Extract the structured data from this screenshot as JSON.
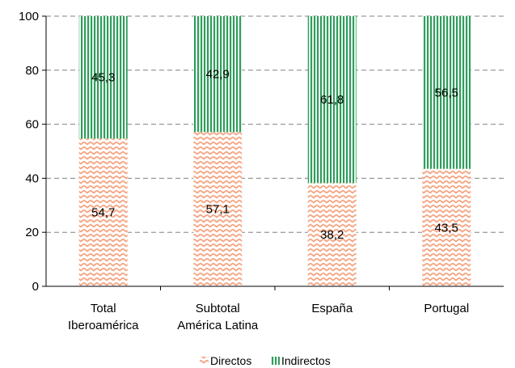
{
  "chart_data": {
    "type": "bar",
    "stacked": true,
    "categories": [
      [
        "Total",
        "Iberoamérica"
      ],
      [
        "Subtotal",
        "América Latina"
      ],
      [
        "España"
      ],
      [
        "Portugal"
      ]
    ],
    "series": [
      {
        "name": "Directos",
        "values": [
          54.7,
          57.1,
          38.2,
          43.5
        ],
        "color": "#f4a582",
        "pattern": "zigzag"
      },
      {
        "name": "Indirectos",
        "values": [
          45.3,
          42.9,
          61.8,
          56.5
        ],
        "color": "#2e9e5b",
        "pattern": "vertical-lines"
      }
    ],
    "data_labels": [
      [
        "54,7",
        "57,1",
        "38,2",
        "43,5"
      ],
      [
        "45,3",
        "42,9",
        "61,8",
        "56,5"
      ]
    ],
    "ylim": [
      0,
      100
    ],
    "yticks": [
      0,
      20,
      40,
      60,
      80,
      100
    ],
    "title": "",
    "xlabel": "",
    "ylabel": "",
    "grid": "horizontal-dashed",
    "legend_position": "bottom-center"
  }
}
